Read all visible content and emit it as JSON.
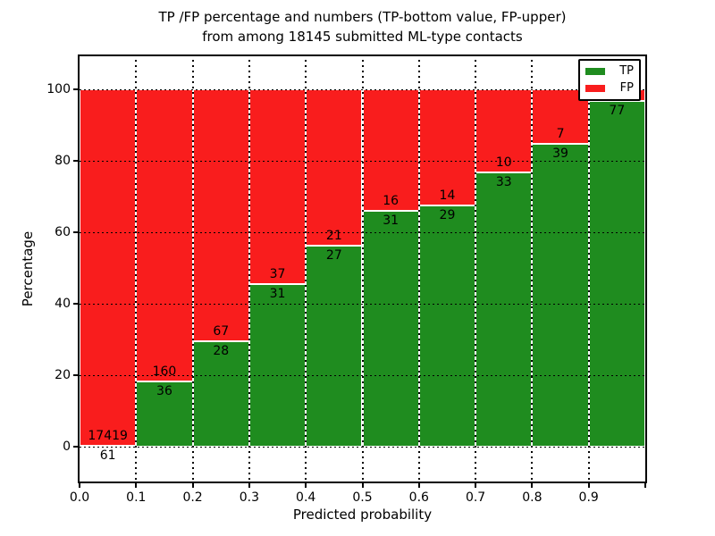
{
  "title": {
    "line1": "TP /FP percentage and numbers (TP-bottom value, FP-upper)",
    "line2": "from among 18145 submitted ML-type contacts"
  },
  "axes": {
    "xlabel": "Predicted probability",
    "ylabel": "Percentage"
  },
  "legend": {
    "items": [
      {
        "label": "TP",
        "color": "#1f8c1f"
      },
      {
        "label": "FP",
        "color": "#f91d1d"
      }
    ]
  },
  "colors": {
    "tp": "#1f8c1f",
    "fp": "#f91d1d",
    "background": "#ffffff",
    "text": "#000000"
  },
  "chart_data": {
    "type": "bar",
    "stacked": true,
    "unit": "percent of contacts per bin",
    "title": "TP /FP percentage and numbers (TP-bottom value, FP-upper) from among 18145 submitted ML-type contacts",
    "xlabel": "Predicted probability",
    "ylabel": "Percentage",
    "xlim": [
      0.0,
      1.0
    ],
    "ylim": [
      -9.75,
      109.25
    ],
    "grid": true,
    "legend_position": "upper right",
    "bin_width": 0.1,
    "bins": [
      "0.0-0.1",
      "0.1-0.2",
      "0.2-0.3",
      "0.3-0.4",
      "0.4-0.5",
      "0.5-0.6",
      "0.6-0.7",
      "0.7-0.8",
      "0.8-0.9",
      "0.9-1.0"
    ],
    "series": [
      {
        "name": "TP",
        "color": "#1f8c1f",
        "counts": [
          61,
          36,
          28,
          31,
          27,
          31,
          29,
          33,
          39,
          77
        ]
      },
      {
        "name": "FP",
        "color": "#f91d1d",
        "counts": [
          17419,
          160,
          67,
          37,
          21,
          16,
          14,
          10,
          7,
          null
        ]
      }
    ],
    "tp_percent": [
      0.35,
      18.37,
      29.47,
      45.59,
      56.25,
      65.96,
      67.44,
      76.74,
      84.78,
      96.75
    ],
    "tp_labels": [
      "61",
      "36",
      "28",
      "31",
      "27",
      "31",
      "29",
      "33",
      "39",
      "77"
    ],
    "fp_labels": [
      "17419",
      "160",
      "67",
      "37",
      "21",
      "16",
      "14",
      "10",
      "7",
      ""
    ],
    "yticks": [
      0,
      20,
      40,
      60,
      80,
      100
    ],
    "xtick_labels": [
      "0.0",
      "0.1",
      "0.2",
      "0.3",
      "0.4",
      "0.5",
      "0.6",
      "0.7",
      "0.8",
      "0.9"
    ]
  }
}
